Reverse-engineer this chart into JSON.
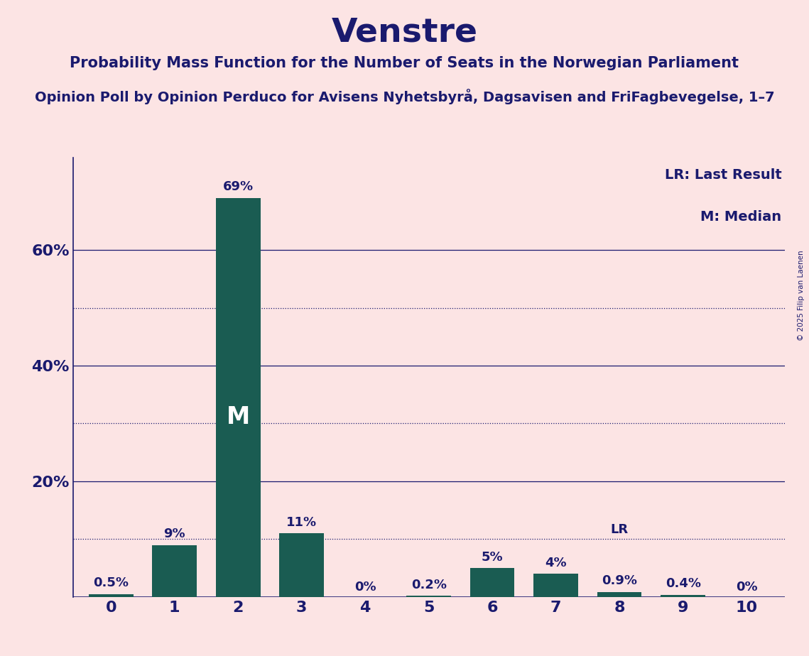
{
  "title": "Venstre",
  "subtitle1": "Probability Mass Function for the Number of Seats in the Norwegian Parliament",
  "subtitle2": "Opinion Poll by Opinion Perduco for Avisens Nyhetsbyrå, Dagsavisen and FriFagbevegelse, 1–7",
  "copyright": "© 2025 Filip van Laenen",
  "categories": [
    0,
    1,
    2,
    3,
    4,
    5,
    6,
    7,
    8,
    9,
    10
  ],
  "values": [
    0.5,
    9,
    69,
    11,
    0,
    0.2,
    5,
    4,
    0.9,
    0.4,
    0
  ],
  "bar_color": "#1a5c52",
  "background_color": "#fce4e4",
  "text_color": "#1a1a6e",
  "bar_labels": [
    "0.5%",
    "9%",
    "69%",
    "11%",
    "0%",
    "0.2%",
    "5%",
    "4%",
    "0.9%",
    "0.4%",
    "0%"
  ],
  "median_bar": 2,
  "lr_bar": 8,
  "legend_lr": "LR: Last Result",
  "legend_m": "M: Median",
  "ylim": [
    0,
    76
  ],
  "solid_gridlines": [
    20,
    40,
    60
  ],
  "dotted_gridlines": [
    10,
    30,
    50
  ]
}
